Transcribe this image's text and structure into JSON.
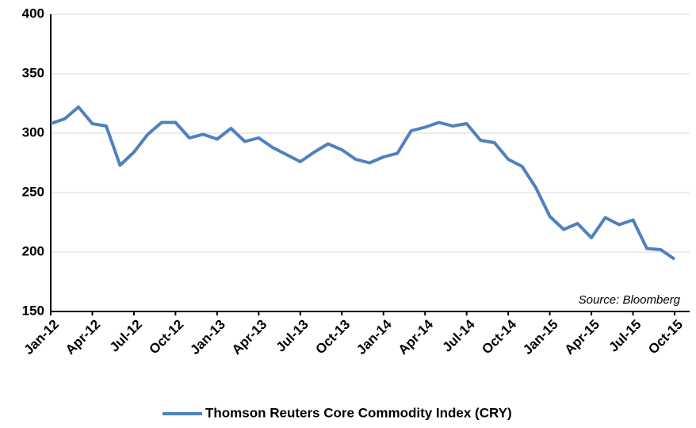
{
  "chart_data": {
    "type": "line",
    "categories": [
      "Jan-12",
      null,
      null,
      "Apr-12",
      null,
      null,
      "Jul-12",
      null,
      null,
      "Oct-12",
      null,
      null,
      "Jan-13",
      null,
      null,
      "Apr-13",
      null,
      null,
      "Jul-13",
      null,
      null,
      "Oct-13",
      null,
      null,
      "Jan-14",
      null,
      null,
      "Apr-14",
      null,
      null,
      "Jul-14",
      null,
      null,
      "Oct-14",
      null,
      null,
      "Jan-15",
      null,
      null,
      "Apr-15",
      null,
      null,
      "Jul-15",
      null,
      null,
      "Oct-15"
    ],
    "series": [
      {
        "name": "Thomson Reuters Core Commodity Index (CRY)",
        "color": "#4f81bd",
        "values": [
          308,
          312,
          322,
          308,
          306,
          273,
          284,
          299,
          309,
          309,
          296,
          299,
          295,
          304,
          293,
          296,
          288,
          282,
          276,
          284,
          291,
          286,
          278,
          275,
          280,
          283,
          302,
          305,
          309,
          306,
          308,
          294,
          292,
          278,
          272,
          254,
          230,
          219,
          224,
          212,
          229,
          223,
          227,
          203,
          202,
          194
        ]
      }
    ],
    "ylim": [
      150,
      400
    ],
    "yticks": [
      150,
      200,
      250,
      300,
      350,
      400
    ],
    "grid": true,
    "annotation": "Source: Bloomberg",
    "legend": "bottom"
  }
}
